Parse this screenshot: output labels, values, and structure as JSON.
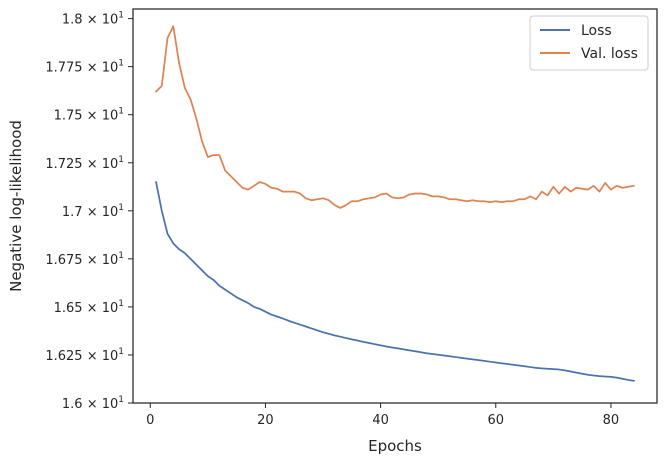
{
  "chart_data": {
    "type": "line",
    "xlabel": "Epochs",
    "ylabel": "Negative log-likelihood",
    "xlim": [
      -3,
      88
    ],
    "ylim": [
      16.0,
      18.05
    ],
    "x_ticks": [
      {
        "value": 0,
        "label": "0"
      },
      {
        "value": 20,
        "label": "20"
      },
      {
        "value": 40,
        "label": "40"
      },
      {
        "value": 60,
        "label": "60"
      },
      {
        "value": 80,
        "label": "80"
      }
    ],
    "y_ticks": [
      {
        "value": 16.0,
        "mantissa": "1.6",
        "times": " × 10",
        "exp": "1"
      },
      {
        "value": 16.25,
        "mantissa": "1.625",
        "times": " × 10",
        "exp": "1"
      },
      {
        "value": 16.5,
        "mantissa": "1.65",
        "times": " × 10",
        "exp": "1"
      },
      {
        "value": 16.75,
        "mantissa": "1.675",
        "times": " × 10",
        "exp": "1"
      },
      {
        "value": 17.0,
        "mantissa": "1.7",
        "times": " × 10",
        "exp": "1"
      },
      {
        "value": 17.25,
        "mantissa": "1.725",
        "times": " × 10",
        "exp": "1"
      },
      {
        "value": 17.5,
        "mantissa": "1.75",
        "times": " × 10",
        "exp": "1"
      },
      {
        "value": 17.75,
        "mantissa": "1.775",
        "times": " × 10",
        "exp": "1"
      },
      {
        "value": 18.0,
        "mantissa": "1.8",
        "times": " × 10",
        "exp": "1"
      }
    ],
    "grid": false,
    "legend_position": "top-right",
    "series": [
      {
        "name": "Loss",
        "color": "#4c72b0",
        "x": [
          1,
          2,
          3,
          4,
          5,
          6,
          7,
          8,
          9,
          10,
          11,
          12,
          13,
          14,
          15,
          16,
          17,
          18,
          19,
          20,
          21,
          22,
          23,
          24,
          25,
          26,
          27,
          28,
          29,
          30,
          31,
          32,
          33,
          34,
          35,
          36,
          37,
          38,
          39,
          40,
          41,
          42,
          43,
          44,
          45,
          46,
          47,
          48,
          49,
          50,
          51,
          52,
          53,
          54,
          55,
          56,
          57,
          58,
          59,
          60,
          61,
          62,
          63,
          64,
          65,
          66,
          67,
          68,
          69,
          70,
          71,
          72,
          73,
          74,
          75,
          76,
          77,
          78,
          79,
          80,
          81,
          82,
          83,
          84
        ],
        "values": [
          17.15,
          17.0,
          16.88,
          16.83,
          16.8,
          16.78,
          16.75,
          16.72,
          16.69,
          16.66,
          16.64,
          16.61,
          16.59,
          16.57,
          16.55,
          16.535,
          16.52,
          16.5,
          16.49,
          16.475,
          16.46,
          16.45,
          16.44,
          16.428,
          16.418,
          16.408,
          16.398,
          16.388,
          16.378,
          16.368,
          16.36,
          16.352,
          16.345,
          16.338,
          16.331,
          16.325,
          16.318,
          16.312,
          16.306,
          16.3,
          16.294,
          16.289,
          16.284,
          16.279,
          16.274,
          16.269,
          16.264,
          16.259,
          16.255,
          16.251,
          16.247,
          16.243,
          16.239,
          16.235,
          16.231,
          16.227,
          16.223,
          16.219,
          16.215,
          16.211,
          16.207,
          16.203,
          16.199,
          16.195,
          16.191,
          16.187,
          16.183,
          16.18,
          16.178,
          16.176,
          16.174,
          16.17,
          16.164,
          16.158,
          16.152,
          16.147,
          16.143,
          16.14,
          16.138,
          16.136,
          16.132,
          16.126,
          16.12,
          16.115
        ]
      },
      {
        "name": "Val. loss",
        "color": "#dd8452",
        "x": [
          1,
          2,
          3,
          4,
          5,
          6,
          7,
          8,
          9,
          10,
          11,
          12,
          13,
          14,
          15,
          16,
          17,
          18,
          19,
          20,
          21,
          22,
          23,
          24,
          25,
          26,
          27,
          28,
          29,
          30,
          31,
          32,
          33,
          34,
          35,
          36,
          37,
          38,
          39,
          40,
          41,
          42,
          43,
          44,
          45,
          46,
          47,
          48,
          49,
          50,
          51,
          52,
          53,
          54,
          55,
          56,
          57,
          58,
          59,
          60,
          61,
          62,
          63,
          64,
          65,
          66,
          67,
          68,
          69,
          70,
          71,
          72,
          73,
          74,
          75,
          76,
          77,
          78,
          79,
          80,
          81,
          82,
          83,
          84
        ],
        "values": [
          17.62,
          17.65,
          17.9,
          17.96,
          17.77,
          17.64,
          17.58,
          17.48,
          17.36,
          17.28,
          17.29,
          17.29,
          17.21,
          17.18,
          17.15,
          17.12,
          17.11,
          17.13,
          17.15,
          17.14,
          17.12,
          17.115,
          17.1,
          17.1,
          17.1,
          17.09,
          17.065,
          17.055,
          17.06,
          17.065,
          17.055,
          17.03,
          17.015,
          17.03,
          17.05,
          17.05,
          17.06,
          17.065,
          17.07,
          17.085,
          17.09,
          17.07,
          17.065,
          17.07,
          17.085,
          17.09,
          17.09,
          17.085,
          17.075,
          17.075,
          17.07,
          17.06,
          17.06,
          17.055,
          17.05,
          17.055,
          17.05,
          17.05,
          17.045,
          17.05,
          17.045,
          17.05,
          17.05,
          17.06,
          17.06,
          17.075,
          17.06,
          17.1,
          17.08,
          17.125,
          17.09,
          17.125,
          17.1,
          17.12,
          17.115,
          17.11,
          17.13,
          17.1,
          17.145,
          17.11,
          17.13,
          17.12,
          17.125,
          17.13
        ]
      }
    ]
  }
}
